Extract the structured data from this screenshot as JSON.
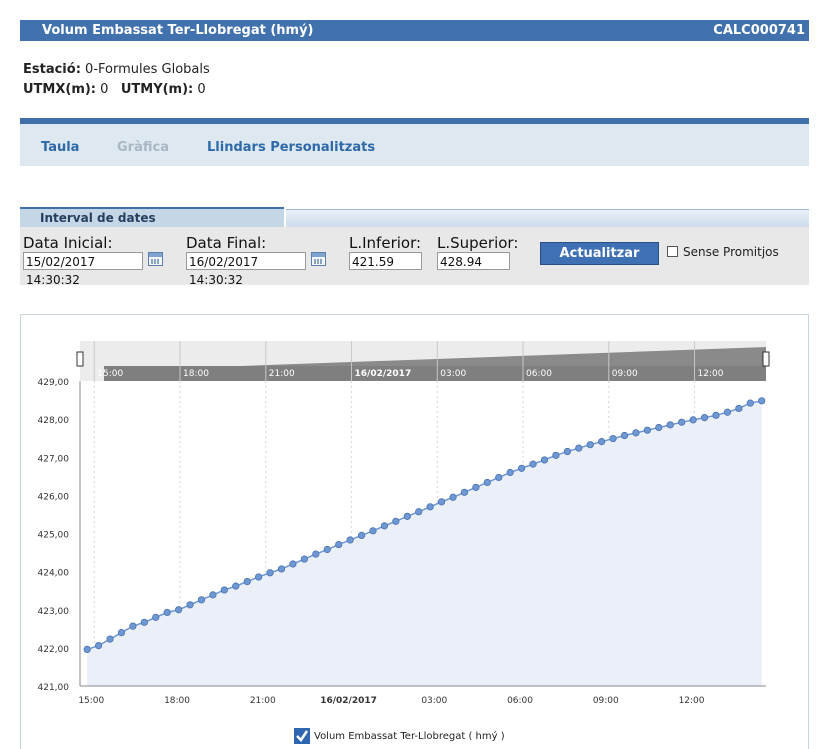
{
  "header": {
    "title": "Volum Embassat Ter-Llobregat  (hmý)",
    "code": "CALC000741"
  },
  "station": {
    "estacio_label": "Estació:",
    "estacio_value": "0-Formules Globals",
    "utmx_label": "UTMX(m):",
    "utmx_value": "0",
    "utmy_label": "UTMY(m):",
    "utmy_value": "0"
  },
  "tabs": [
    {
      "label": "Taula",
      "enabled": true
    },
    {
      "label": "Gràfica",
      "enabled": false
    },
    {
      "label": "Llindars Personalitzats",
      "enabled": true
    }
  ],
  "interval": {
    "header": "Interval de dates",
    "data_inicial_label": "Data Inicial:",
    "data_inicial_value": "15/02/2017 14:30:32",
    "data_final_label": "Data Final:",
    "data_final_value": "16/02/2017 14:30:32",
    "linferior_label": "L.Inferior:",
    "linferior_value": "421.59",
    "lsuperior_label": "L.Superior:",
    "lsuperior_value": "428.94",
    "update_button": "Actualitzar",
    "no_average_label": "Sense Promitjos",
    "no_average_checked": false
  },
  "colors": {
    "accent": "#4272ad",
    "series": "#6e98d4",
    "area": "#eaeff8",
    "navigator": "#8a8a8a"
  },
  "chart_data": {
    "type": "area",
    "title": "",
    "xlabel": "",
    "ylabel": "",
    "ylim": [
      421,
      429
    ],
    "ytick_labels": [
      "421,00",
      "422,00",
      "423,00",
      "424,00",
      "425,00",
      "426,00",
      "427,00",
      "428,00",
      "429,00"
    ],
    "ytick_values": [
      421,
      422,
      423,
      424,
      425,
      426,
      427,
      428,
      429
    ],
    "xlim_hours": [
      14.5,
      38.5
    ],
    "xtick_labels": [
      "15:00",
      "18:00",
      "21:00",
      "16/02/2017",
      "03:00",
      "06:00",
      "09:00",
      "12:00"
    ],
    "xtick_hours": [
      15,
      18,
      21,
      24,
      27,
      30,
      33,
      36
    ],
    "grid": true,
    "legend_position": "bottom",
    "series": [
      {
        "name": "Volum Embassat Ter-Llobregat ( hmý )",
        "x_hours": [
          14.75,
          15.15,
          15.55,
          15.95,
          16.35,
          16.75,
          17.15,
          17.55,
          17.95,
          18.35,
          18.75,
          19.15,
          19.55,
          19.95,
          20.35,
          20.75,
          21.15,
          21.55,
          21.95,
          22.35,
          22.75,
          23.15,
          23.55,
          23.95,
          24.35,
          24.75,
          25.15,
          25.55,
          25.95,
          26.35,
          26.75,
          27.15,
          27.55,
          27.95,
          28.35,
          28.75,
          29.15,
          29.55,
          29.95,
          30.35,
          30.75,
          31.15,
          31.55,
          31.95,
          32.35,
          32.75,
          33.15,
          33.55,
          33.95,
          34.35,
          34.75,
          35.15,
          35.55,
          35.95,
          36.35,
          36.75,
          37.15,
          37.55,
          37.95,
          38.35
        ],
        "values": [
          421.96,
          422.06,
          422.23,
          422.4,
          422.57,
          422.67,
          422.8,
          422.93,
          423.0,
          423.13,
          423.26,
          423.39,
          423.52,
          423.62,
          423.74,
          423.86,
          423.97,
          424.07,
          424.2,
          424.33,
          424.46,
          424.58,
          424.71,
          424.83,
          424.95,
          425.07,
          425.2,
          425.32,
          425.45,
          425.57,
          425.7,
          425.83,
          425.95,
          426.08,
          426.21,
          426.34,
          426.47,
          426.6,
          426.71,
          426.82,
          426.93,
          427.05,
          427.15,
          427.24,
          427.33,
          427.41,
          427.49,
          427.57,
          427.64,
          427.71,
          427.78,
          427.85,
          427.92,
          427.98,
          428.04,
          428.1,
          428.18,
          428.28,
          428.42,
          428.48
        ]
      }
    ]
  }
}
